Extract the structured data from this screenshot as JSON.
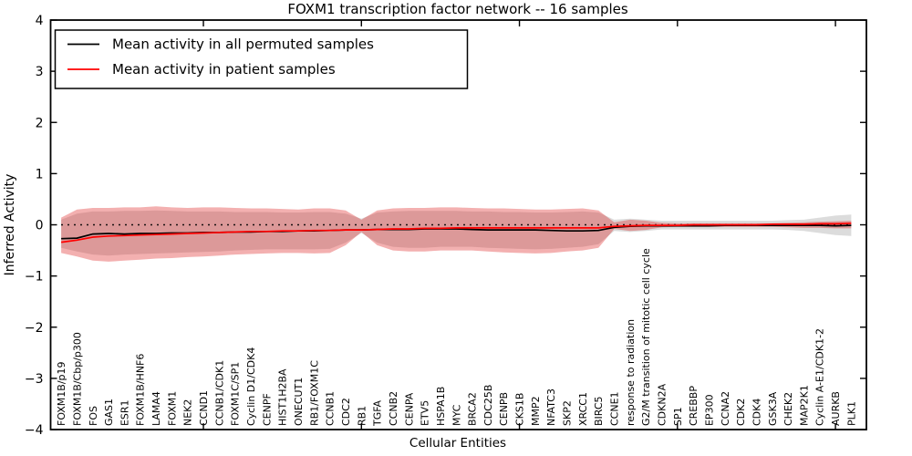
{
  "figure": {
    "title": "FOXM1 transcription factor network -- 16 samples",
    "xlabel": "Cellular Entities",
    "ylabel": "Inferred Activity"
  },
  "legend": {
    "entries": [
      {
        "label": "Mean activity in all permuted samples",
        "color": "#000000"
      },
      {
        "label": "Mean activity in patient samples",
        "color": "#ff0000"
      }
    ],
    "position": "upper left"
  },
  "chart_data": {
    "type": "line",
    "title": "FOXM1 transcription factor network -- 16 samples",
    "xlabel": "Cellular Entities",
    "ylabel": "Inferred Activity",
    "ylim": [
      -4,
      4
    ],
    "yticks": [
      -4,
      -3,
      -2,
      -1,
      0,
      1,
      2,
      3,
      4
    ],
    "xticks_entity_numbers": [
      10,
      20,
      30,
      40,
      50
    ],
    "grid": false,
    "zero_line": {
      "y": 0,
      "style": "dotted",
      "color": "#000000"
    },
    "categories": [
      "FOXM1B/p19",
      "FOXM1B/Cbp/p300",
      "FOS",
      "GAS1",
      "ESR1",
      "FOXM1B/HNF6",
      "LAMA4",
      "FOXM1",
      "NEK2",
      "CCND1",
      "CCNB1/CDK1",
      "FOXM1C/SP1",
      "Cyclin D1/CDK4",
      "CENPF",
      "HIST1H2BA",
      "ONECUT1",
      "RB1/FOXM1C",
      "CCNB1",
      "CDC2",
      "RB1",
      "TGFA",
      "CCNB2",
      "CENPA",
      "ETV5",
      "HSPA1B",
      "MYC",
      "BRCA2",
      "CDC25B",
      "CENPB",
      "CKS1B",
      "MMP2",
      "NFATC3",
      "SKP2",
      "XRCC1",
      "BIRC5",
      "CCNE1",
      "response to radiation",
      "G2/M transition of mitotic cell cycle",
      "CDKN2A",
      "SP1",
      "CREBBP",
      "EP300",
      "CCNA2",
      "CDK2",
      "CDK4",
      "GSK3A",
      "CHEK2",
      "MAP2K1",
      "Cyclin A-E1/CDK1-2",
      "AURKB",
      "PLK1"
    ],
    "series": [
      {
        "name": "Mean activity in all permuted samples",
        "color": "#000000",
        "values": [
          -0.27,
          -0.26,
          -0.18,
          -0.17,
          -0.18,
          -0.17,
          -0.17,
          -0.16,
          -0.16,
          -0.15,
          -0.15,
          -0.14,
          -0.14,
          -0.13,
          -0.13,
          -0.12,
          -0.12,
          -0.11,
          -0.1,
          -0.1,
          -0.09,
          -0.09,
          -0.09,
          -0.08,
          -0.08,
          -0.08,
          -0.09,
          -0.1,
          -0.1,
          -0.1,
          -0.1,
          -0.11,
          -0.12,
          -0.12,
          -0.11,
          -0.05,
          -0.03,
          -0.02,
          -0.02,
          -0.02,
          -0.02,
          -0.02,
          -0.01,
          -0.01,
          -0.01,
          -0.01,
          -0.01,
          -0.01,
          -0.01,
          -0.02,
          -0.01
        ]
      },
      {
        "name": "Mean activity in patient samples",
        "color": "#ff0000",
        "values": [
          -0.34,
          -0.3,
          -0.24,
          -0.22,
          -0.21,
          -0.2,
          -0.19,
          -0.18,
          -0.17,
          -0.16,
          -0.15,
          -0.14,
          -0.13,
          -0.13,
          -0.12,
          -0.12,
          -0.11,
          -0.11,
          -0.1,
          -0.1,
          -0.09,
          -0.08,
          -0.08,
          -0.07,
          -0.07,
          -0.06,
          -0.06,
          -0.06,
          -0.06,
          -0.06,
          -0.06,
          -0.06,
          -0.06,
          -0.06,
          -0.06,
          -0.03,
          -0.02,
          -0.01,
          -0.01,
          -0.01,
          0.0,
          0.0,
          0.0,
          0.0,
          0.0,
          0.01,
          0.01,
          0.01,
          0.02,
          0.02,
          0.03
        ]
      }
    ],
    "bands": [
      {
        "name": "permuted samples range",
        "color": "#8c8c8c",
        "opacity": 0.3,
        "upper": [
          0.1,
          0.22,
          0.26,
          0.26,
          0.27,
          0.27,
          0.28,
          0.27,
          0.26,
          0.26,
          0.26,
          0.25,
          0.25,
          0.25,
          0.24,
          0.24,
          0.25,
          0.25,
          0.22,
          0.12,
          0.24,
          0.26,
          0.27,
          0.27,
          0.27,
          0.27,
          0.26,
          0.26,
          0.25,
          0.25,
          0.24,
          0.24,
          0.25,
          0.26,
          0.24,
          0.1,
          0.12,
          0.1,
          0.08,
          0.08,
          0.08,
          0.08,
          0.08,
          0.08,
          0.08,
          0.08,
          0.09,
          0.1,
          0.14,
          0.18,
          0.2
        ],
        "lower": [
          -0.45,
          -0.52,
          -0.58,
          -0.6,
          -0.58,
          -0.57,
          -0.56,
          -0.55,
          -0.54,
          -0.53,
          -0.52,
          -0.5,
          -0.49,
          -0.48,
          -0.48,
          -0.48,
          -0.48,
          -0.47,
          -0.35,
          -0.16,
          -0.35,
          -0.43,
          -0.45,
          -0.45,
          -0.43,
          -0.43,
          -0.43,
          -0.45,
          -0.46,
          -0.47,
          -0.48,
          -0.47,
          -0.45,
          -0.43,
          -0.38,
          -0.12,
          -0.14,
          -0.12,
          -0.09,
          -0.09,
          -0.09,
          -0.09,
          -0.09,
          -0.09,
          -0.09,
          -0.09,
          -0.1,
          -0.12,
          -0.16,
          -0.2,
          -0.22
        ]
      },
      {
        "name": "patient samples range",
        "color": "#dc1e1e",
        "opacity": 0.35,
        "upper": [
          0.14,
          0.3,
          0.33,
          0.33,
          0.34,
          0.34,
          0.36,
          0.34,
          0.33,
          0.34,
          0.34,
          0.33,
          0.32,
          0.32,
          0.31,
          0.3,
          0.32,
          0.32,
          0.28,
          0.1,
          0.28,
          0.32,
          0.33,
          0.33,
          0.34,
          0.34,
          0.33,
          0.32,
          0.32,
          0.31,
          0.3,
          0.3,
          0.31,
          0.32,
          0.28,
          0.05,
          0.1,
          0.08,
          0.04,
          0.03,
          0.03,
          0.03,
          0.03,
          0.03,
          0.03,
          0.03,
          0.04,
          0.05,
          0.06,
          0.07,
          0.08
        ],
        "lower": [
          -0.55,
          -0.62,
          -0.7,
          -0.72,
          -0.7,
          -0.68,
          -0.66,
          -0.65,
          -0.63,
          -0.62,
          -0.6,
          -0.58,
          -0.57,
          -0.56,
          -0.55,
          -0.55,
          -0.56,
          -0.55,
          -0.4,
          -0.14,
          -0.4,
          -0.5,
          -0.52,
          -0.52,
          -0.5,
          -0.5,
          -0.5,
          -0.52,
          -0.54,
          -0.55,
          -0.56,
          -0.55,
          -0.52,
          -0.5,
          -0.45,
          -0.08,
          -0.12,
          -0.1,
          -0.05,
          -0.04,
          -0.04,
          -0.04,
          -0.04,
          -0.04,
          -0.04,
          -0.04,
          -0.05,
          -0.06,
          -0.06,
          -0.07,
          -0.07
        ]
      }
    ]
  }
}
